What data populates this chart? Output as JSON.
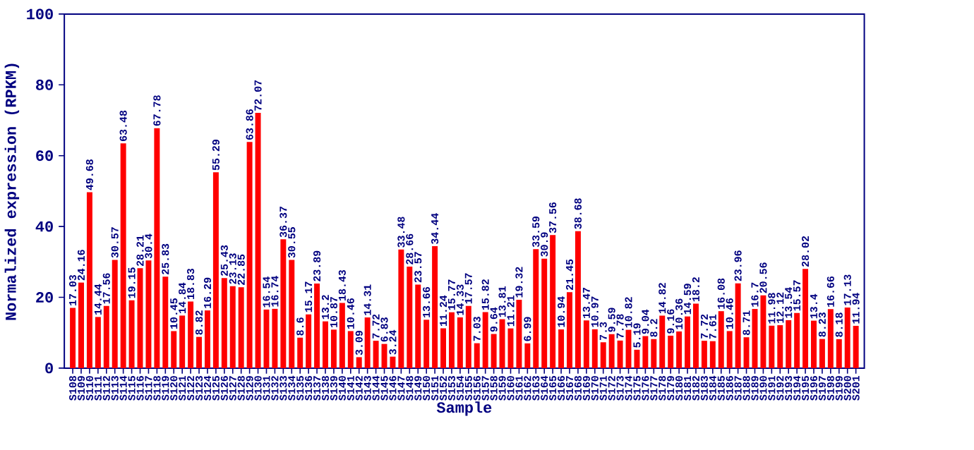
{
  "chart_data": {
    "type": "bar",
    "xlabel": "Sample",
    "ylabel": "Normalized expression (RPKM)",
    "categories": [
      "S108",
      "S109",
      "S110",
      "S111",
      "S112",
      "S113",
      "S114",
      "S115",
      "S116",
      "S117",
      "S118",
      "S119",
      "S120",
      "S121",
      "S122",
      "S123",
      "S124",
      "S125",
      "S126",
      "S127",
      "S128",
      "S129",
      "S130",
      "S131",
      "S132",
      "S133",
      "S134",
      "S135",
      "S136",
      "S137",
      "S138",
      "S139",
      "S140",
      "S141",
      "S142",
      "S143",
      "S144",
      "S145",
      "S146",
      "S147",
      "S148",
      "S149",
      "S150",
      "S151",
      "S152",
      "S153",
      "S154",
      "S155",
      "S156",
      "S157",
      "S158",
      "S159",
      "S160",
      "S161",
      "S162",
      "S163",
      "S164",
      "S165",
      "S166",
      "S167",
      "S168",
      "S169",
      "S170",
      "S171",
      "S172",
      "S173",
      "S174",
      "S175",
      "S176",
      "S177",
      "S178",
      "S179",
      "S180",
      "S181",
      "S182",
      "S183",
      "S184",
      "S185",
      "S186",
      "S187",
      "S188",
      "S189",
      "S190",
      "S191",
      "S192",
      "S193",
      "S194",
      "S195",
      "S196",
      "S197",
      "S198",
      "S199",
      "S200",
      "S201"
    ],
    "values": [
      17.03,
      24.16,
      49.68,
      14.44,
      17.56,
      30.57,
      63.48,
      19.15,
      28.21,
      30.4,
      67.78,
      25.83,
      10.45,
      14.84,
      18.83,
      8.82,
      16.29,
      55.29,
      25.43,
      23.13,
      22.85,
      63.86,
      72.07,
      16.54,
      16.74,
      36.37,
      30.55,
      8.6,
      15.17,
      23.89,
      13.2,
      10.87,
      18.43,
      10.46,
      3.09,
      14.31,
      7.72,
      6.83,
      3.24,
      33.48,
      28.66,
      23.57,
      13.66,
      34.44,
      11.24,
      15.77,
      14.33,
      17.57,
      7.03,
      15.82,
      9.64,
      13.81,
      11.21,
      19.32,
      6.99,
      33.59,
      30.9,
      37.56,
      10.94,
      21.45,
      38.68,
      13.47,
      10.97,
      7.3,
      9.59,
      7.78,
      10.82,
      5.19,
      9.04,
      8.2,
      14.82,
      9.16,
      10.36,
      14.59,
      18.2,
      7.72,
      7.61,
      16.08,
      10.46,
      23.96,
      8.71,
      16.7,
      20.56,
      11.98,
      12.12,
      13.54,
      15.57,
      28.02,
      13.4,
      8.23,
      16.66,
      8.18,
      17.13,
      11.94
    ],
    "color": "#ff0000",
    "ylim": [
      0,
      100
    ],
    "yticks": [
      0,
      20,
      40,
      60,
      80,
      100
    ],
    "data_labels": true
  }
}
